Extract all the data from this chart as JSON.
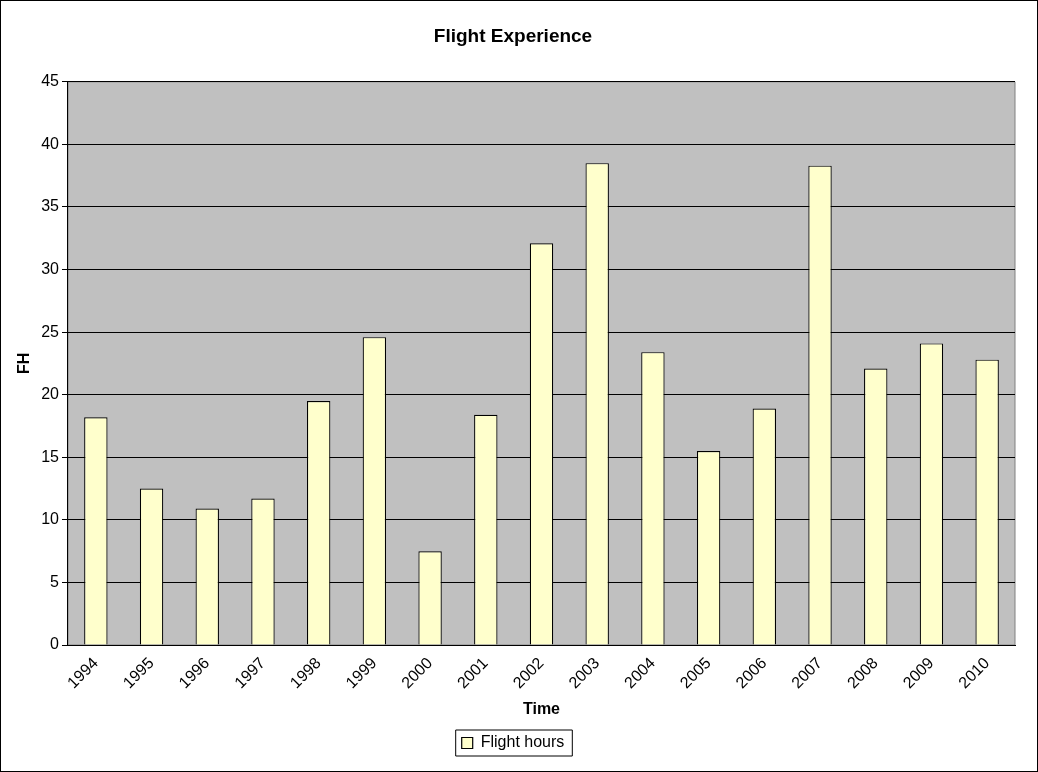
{
  "chart_data": {
    "type": "bar",
    "title": "Flight Experience",
    "xlabel": "Time",
    "ylabel": "FH",
    "categories": [
      "1994",
      "1995",
      "1996",
      "1997",
      "1998",
      "1999",
      "2000",
      "2001",
      "2002",
      "2003",
      "2004",
      "2005",
      "2006",
      "2007",
      "2008",
      "2009",
      "2010"
    ],
    "series": [
      {
        "name": "Flight hours",
        "color": "#ffffcc",
        "values": [
          18.2,
          12.5,
          10.9,
          11.7,
          19.5,
          24.6,
          7.5,
          18.4,
          32.1,
          38.5,
          23.4,
          15.5,
          18.9,
          38.3,
          22.1,
          24.1,
          22.8
        ]
      }
    ],
    "ylim": [
      0,
      45
    ],
    "yticks": [
      0,
      5,
      10,
      15,
      20,
      25,
      30,
      35,
      40,
      45
    ],
    "grid": "y",
    "legend": "bottom"
  }
}
